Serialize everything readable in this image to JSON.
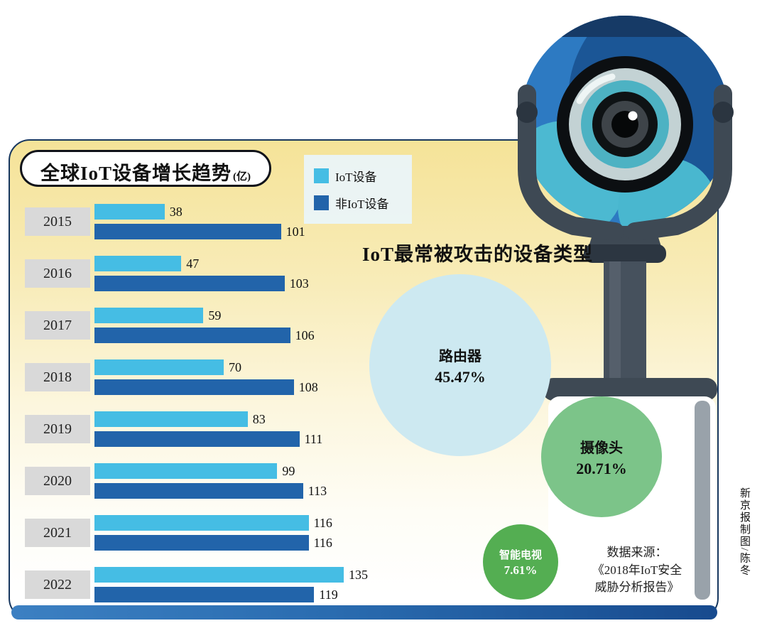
{
  "bar_chart": {
    "title": "全球IoT设备增长趋势",
    "unit": "(亿)",
    "legend": [
      {
        "label": "IoT设备",
        "color": "#45bde4"
      },
      {
        "label": "非IoT设备",
        "color": "#2264aa"
      }
    ]
  },
  "bubble_chart": {
    "title": "IoT最常被攻击的设备类型",
    "bubbles": [
      {
        "label": "路由器",
        "value": "45.47%",
        "color": "#cde9f1"
      },
      {
        "label": "摄像头",
        "value": "20.71%",
        "color": "#7cc489"
      },
      {
        "label": "智能电视",
        "value": "7.61%",
        "color": "#54ae52"
      }
    ],
    "source_lines": [
      "数据来源：",
      "《2018年IoT安全",
      "威胁分析报告》"
    ]
  },
  "credit": "新京报制图/陈冬",
  "chart_data": [
    {
      "type": "bar",
      "orientation": "horizontal",
      "title": "全球IoT设备增长趋势(亿)",
      "unit": "亿",
      "categories": [
        "2015",
        "2016",
        "2017",
        "2018",
        "2019",
        "2020",
        "2021",
        "2022"
      ],
      "series": [
        {
          "name": "IoT设备",
          "color": "#45bde4",
          "values": [
            38,
            47,
            59,
            70,
            83,
            99,
            116,
            135
          ]
        },
        {
          "name": "非IoT设备",
          "color": "#2264aa",
          "values": [
            101,
            103,
            106,
            108,
            111,
            113,
            116,
            119
          ]
        }
      ],
      "xlim": [
        0,
        140
      ],
      "grid": false,
      "legend_position": "top-right"
    },
    {
      "type": "pie",
      "title": "IoT最常被攻击的设备类型",
      "labels": [
        "路由器",
        "摄像头",
        "智能电视"
      ],
      "values": [
        45.47,
        20.71,
        7.61
      ],
      "unit": "%",
      "source": "数据来源：《2018年IoT安全威胁分析报告》"
    }
  ]
}
